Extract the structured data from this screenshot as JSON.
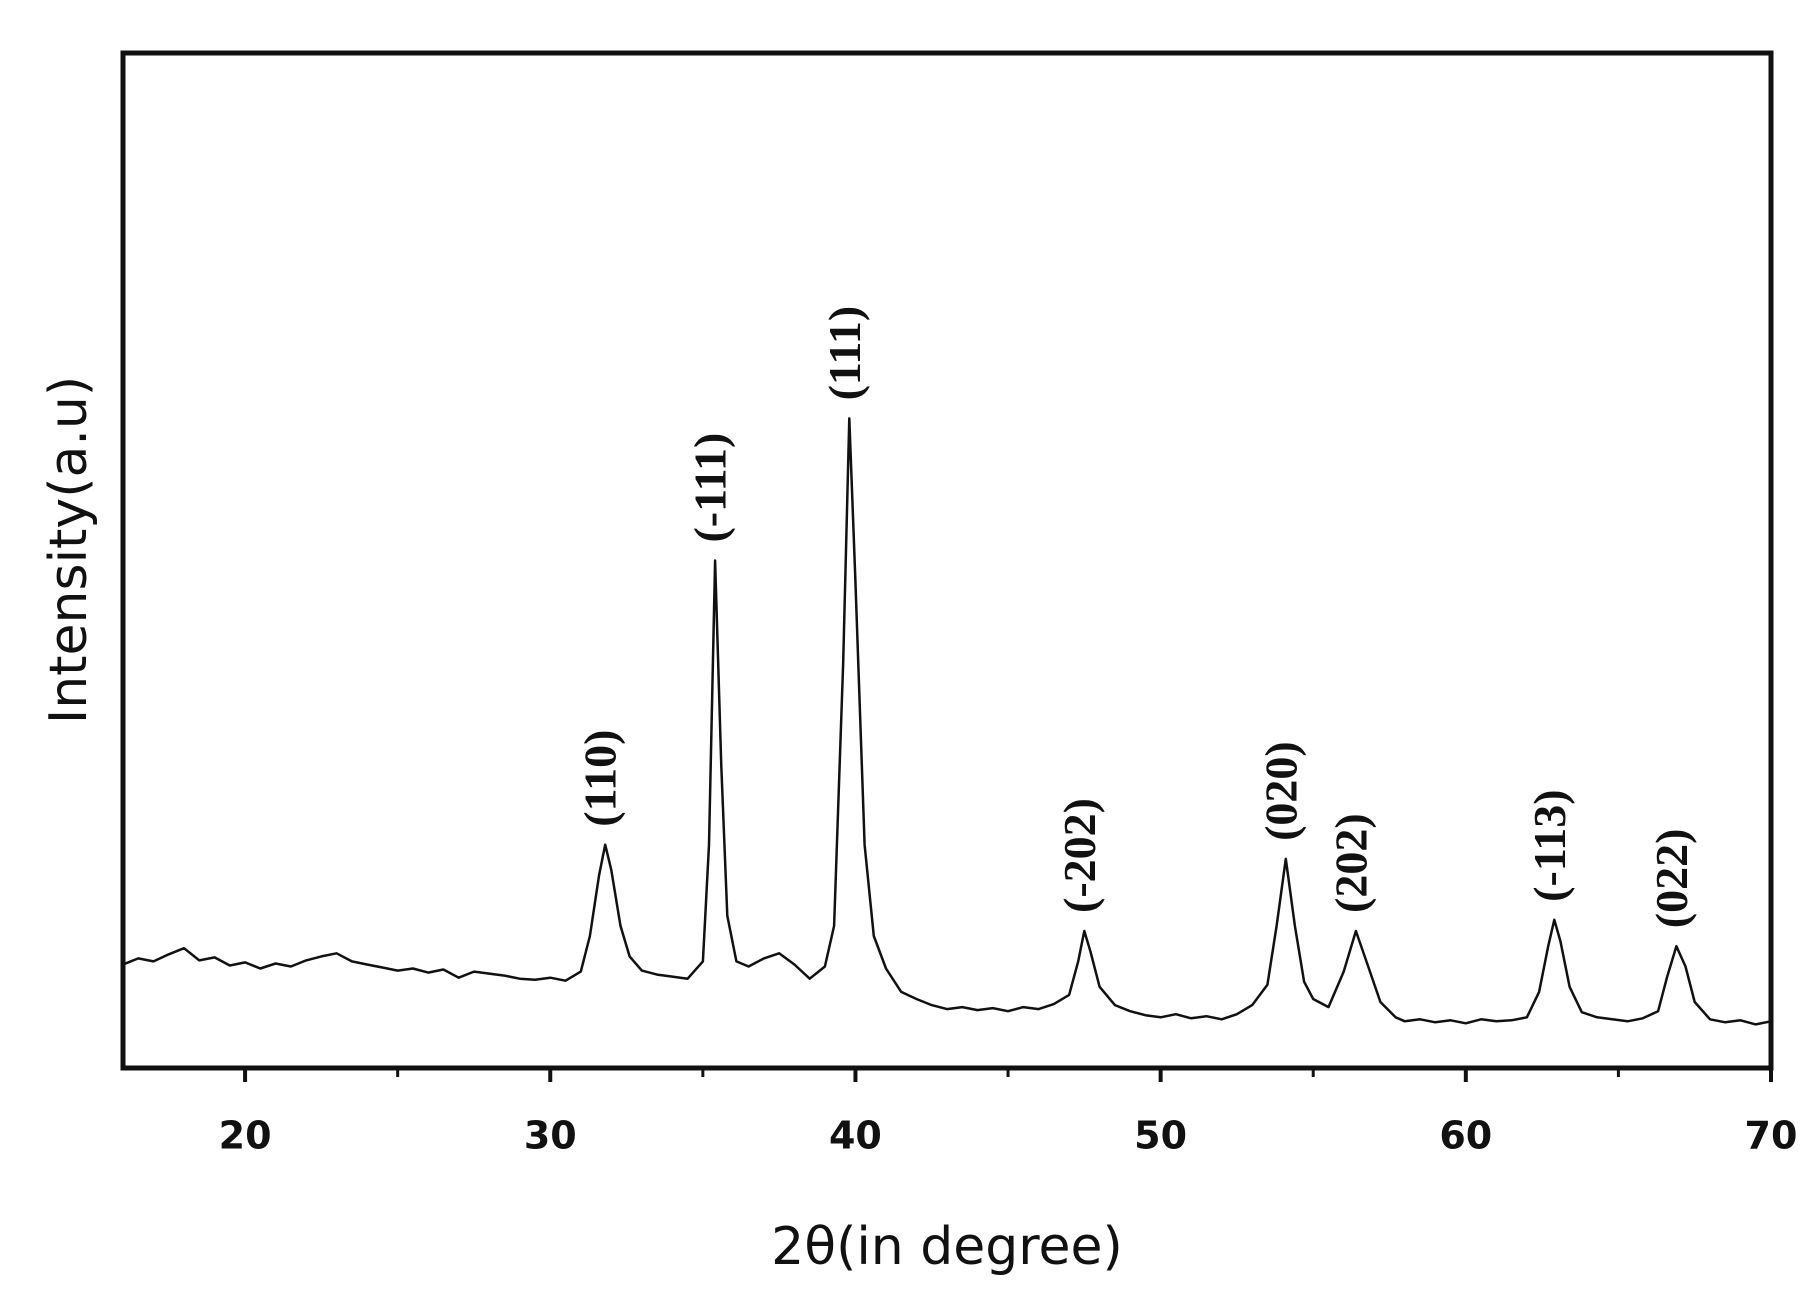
{
  "chart_data": {
    "type": "line",
    "x_label": "2θ(in degree)",
    "y_label": "Intensity(a.u)",
    "xlim": [
      16,
      70
    ],
    "ylim": [
      0,
      100
    ],
    "xticks": [
      20,
      30,
      40,
      50,
      60,
      70
    ],
    "xminor_ticks": [
      25,
      35,
      45,
      55,
      65
    ],
    "series": [
      {
        "color": "#111111",
        "x": [
          16,
          16.5,
          17,
          17.5,
          18,
          18.5,
          19,
          19.5,
          20,
          20.5,
          21,
          21.5,
          22,
          22.5,
          23,
          23.5,
          24,
          24.5,
          25,
          25.5,
          26,
          26.5,
          27,
          27.5,
          28,
          28.5,
          29,
          29.5,
          30,
          30.5,
          31,
          31.3,
          31.6,
          31.8,
          32.0,
          32.3,
          32.6,
          33,
          33.5,
          34,
          34.5,
          35,
          35.2,
          35.4,
          35.6,
          35.8,
          36.1,
          36.5,
          37,
          37.5,
          38,
          38.5,
          39,
          39.3,
          39.6,
          39.8,
          40.0,
          40.3,
          40.6,
          41,
          41.5,
          42,
          42.5,
          43,
          43.5,
          44,
          44.5,
          45,
          45.5,
          46,
          46.5,
          47,
          47.3,
          47.5,
          47.7,
          48,
          48.5,
          49,
          49.5,
          50,
          50.5,
          51,
          51.5,
          52,
          52.5,
          53,
          53.5,
          53.8,
          54.1,
          54.4,
          54.7,
          55,
          55.5,
          56,
          56.4,
          56.8,
          57.2,
          57.7,
          58,
          58.5,
          59,
          59.5,
          60,
          60.5,
          61,
          61.5,
          62,
          62.4,
          62.7,
          62.9,
          63.1,
          63.4,
          63.8,
          64.3,
          64.8,
          65.3,
          65.8,
          66.3,
          66.6,
          66.9,
          67.2,
          67.5,
          68,
          68.5,
          69,
          69.5,
          70
        ],
        "values": [
          10.2,
          10.8,
          10.5,
          11.2,
          11.8,
          10.6,
          10.9,
          10.1,
          10.4,
          9.8,
          10.3,
          10.0,
          10.6,
          11.0,
          11.3,
          10.5,
          10.2,
          9.9,
          9.6,
          9.8,
          9.4,
          9.7,
          8.9,
          9.5,
          9.3,
          9.1,
          8.8,
          8.7,
          8.9,
          8.6,
          9.5,
          13,
          19,
          22,
          19.5,
          14,
          11,
          9.6,
          9.2,
          9.0,
          8.8,
          10.5,
          22,
          50,
          30,
          15,
          10.5,
          10,
          10.8,
          11.3,
          10.2,
          8.8,
          10,
          14,
          40,
          64,
          48,
          22,
          13,
          9.8,
          7.5,
          6.8,
          6.2,
          5.8,
          6.0,
          5.7,
          5.9,
          5.6,
          6.0,
          5.8,
          6.3,
          7.2,
          10.5,
          13.5,
          11.5,
          8,
          6.2,
          5.6,
          5.2,
          5.0,
          5.3,
          4.9,
          5.1,
          4.8,
          5.3,
          6.2,
          8.2,
          14,
          20.6,
          14,
          8.5,
          6.8,
          6.0,
          9.5,
          13.5,
          10,
          6.5,
          5.0,
          4.6,
          4.8,
          4.5,
          4.7,
          4.4,
          4.8,
          4.6,
          4.7,
          5.0,
          7.5,
          12,
          14.6,
          12.5,
          8,
          5.5,
          5.0,
          4.8,
          4.6,
          4.9,
          5.6,
          9,
          12,
          10,
          6.5,
          4.8,
          4.5,
          4.7,
          4.3,
          4.6
        ]
      }
    ],
    "annotations": [
      {
        "text": "(110)",
        "x": 31.8
      },
      {
        "text": "(-111)",
        "x": 35.4
      },
      {
        "text": "(111)",
        "x": 39.8
      },
      {
        "text": "(-202)",
        "x": 47.5
      },
      {
        "text": "(020)",
        "x": 54.1
      },
      {
        "text": "(202)",
        "x": 56.4
      },
      {
        "text": "(-113)",
        "x": 62.9
      },
      {
        "text": "(022)",
        "x": 66.9
      }
    ]
  }
}
